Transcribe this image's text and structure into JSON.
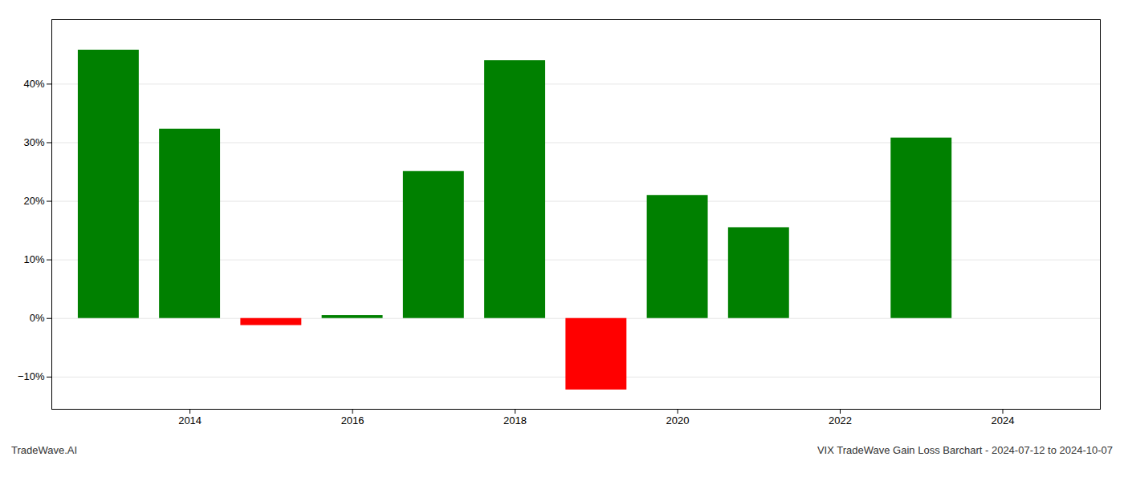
{
  "chart_data": {
    "type": "bar",
    "x": [
      2013,
      2014,
      2015,
      2016,
      2017,
      2018,
      2019,
      2020,
      2021,
      2022,
      2023
    ],
    "values": [
      0.458,
      0.323,
      -0.012,
      0.005,
      0.251,
      0.44,
      -0.122,
      0.21,
      0.155,
      0.0,
      0.308
    ],
    "colors": [
      "#008000",
      "#008000",
      "#ff0000",
      "#008000",
      "#008000",
      "#008000",
      "#ff0000",
      "#008000",
      "#008000",
      "#008000",
      "#008000"
    ],
    "xlim": [
      2012.3,
      2025.2
    ],
    "xticks": [
      2014,
      2016,
      2018,
      2020,
      2022,
      2024
    ],
    "ylim": [
      -0.155,
      0.51
    ],
    "yticks": [
      {
        "value": -0.1,
        "label": "−10%"
      },
      {
        "value": 0,
        "label": "0%"
      },
      {
        "value": 0.1,
        "label": "10%"
      },
      {
        "value": 0.2,
        "label": "20%"
      },
      {
        "value": 0.3,
        "label": "30%"
      },
      {
        "value": 0.4,
        "label": "40%"
      }
    ],
    "grid": true,
    "annotations": [
      "TradeWave.AI",
      "VIX TradeWave Gain Loss Barchart - 2024-07-12 to 2024-10-07"
    ]
  }
}
